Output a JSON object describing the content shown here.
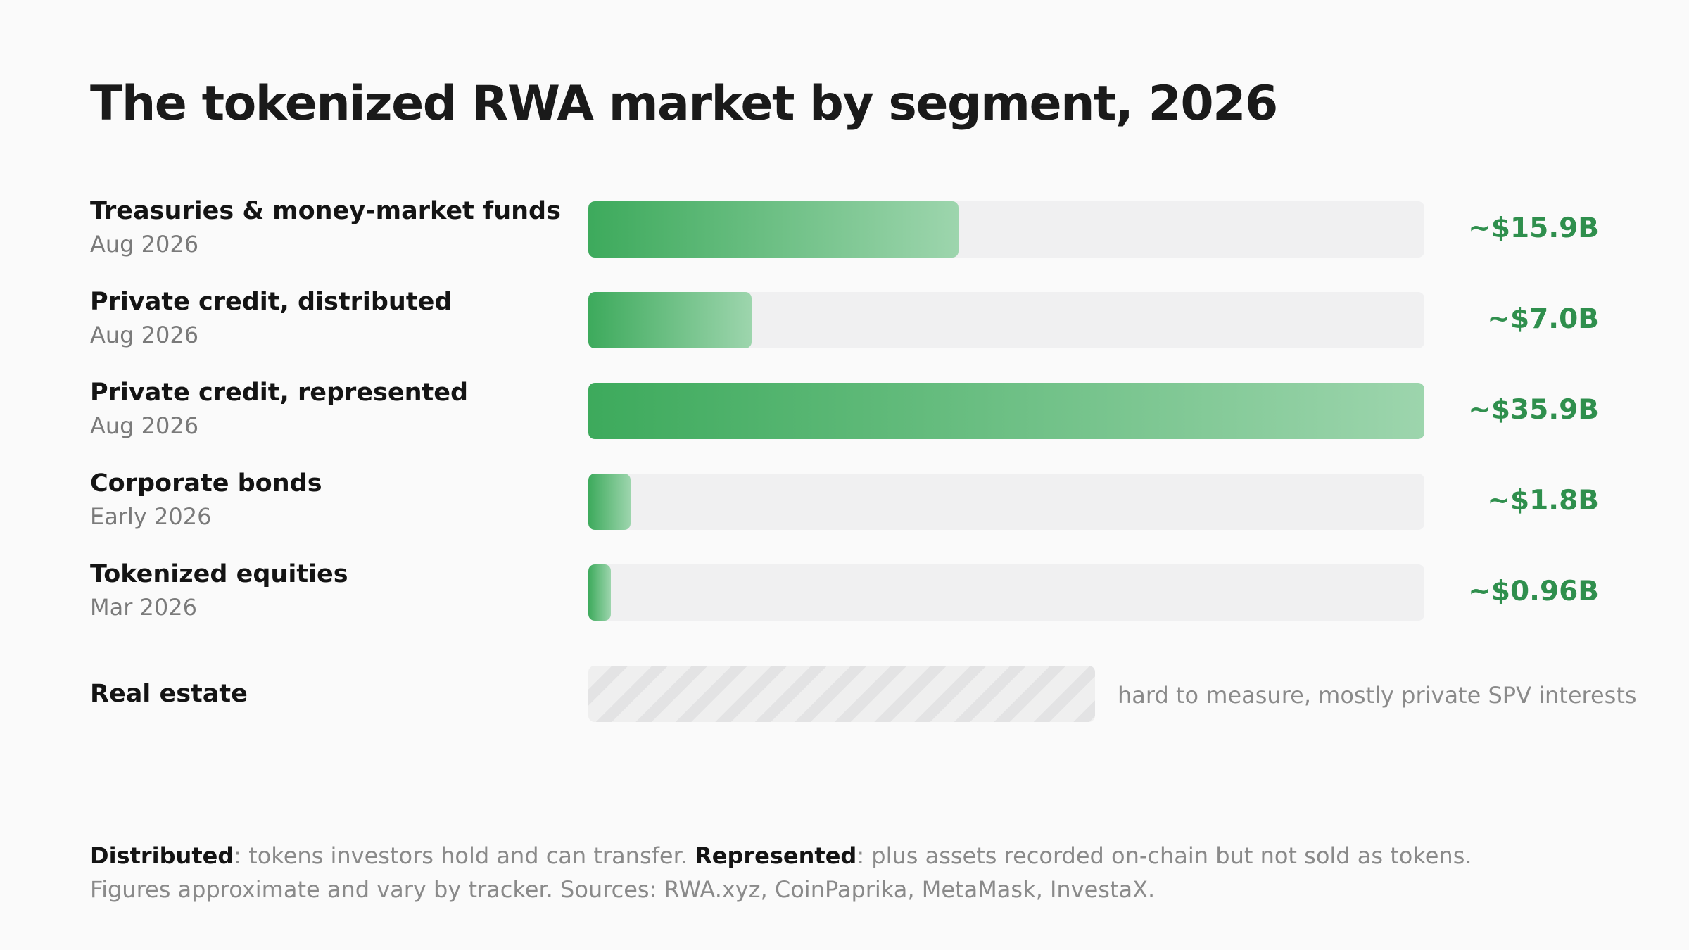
{
  "title": "The tokenized RWA market by segment, 2026",
  "chart_data": {
    "type": "bar",
    "orientation": "horizontal",
    "title": "The tokenized RWA market by segment, 2026",
    "xlim": [
      0,
      35.9
    ],
    "unit": "USD billions",
    "categories": [
      "Treasuries & money-market funds",
      "Private credit, distributed",
      "Private credit, represented",
      "Corporate bonds",
      "Tokenized equities",
      "Real estate"
    ],
    "dates": [
      "Aug 2026",
      "Aug 2026",
      "Aug 2026",
      "Early 2026",
      "Mar 2026",
      ""
    ],
    "values": [
      15.9,
      7.0,
      35.9,
      1.8,
      0.96,
      null
    ],
    "value_labels": [
      "~$15.9B",
      "~$7.0B",
      "~$35.9B",
      "~$1.8B",
      "~$0.96B",
      ""
    ],
    "note": "hard to measure, mostly private SPV interests",
    "colors": {
      "bar_start": "#3daa5c",
      "bar_end": "#9dd5ad",
      "value": "#2f8f4d",
      "track": "#f0f0f1"
    }
  },
  "footer": {
    "distributed_term": "Distributed",
    "distributed_def": ": tokens investors hold and can transfer. ",
    "represented_term": "Represented",
    "represented_def": ": plus assets recorded on-chain but not sold as tokens.",
    "sources": "Figures approximate and vary by tracker. Sources: RWA.xyz, CoinPaprika, MetaMask, InvestaX."
  }
}
